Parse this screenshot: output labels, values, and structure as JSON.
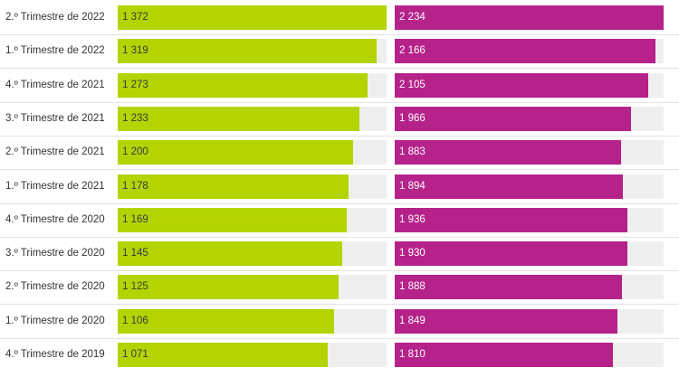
{
  "chart_data": {
    "type": "bar",
    "orientation": "horizontal",
    "categories": [
      "2.º Trimestre de 2022",
      "1.º Trimestre de 2022",
      "4.º Trimestre de 2021",
      "3.º Trimestre de 2021",
      "2.º Trimestre de 2021",
      "1.º Trimestre de 2021",
      "4.º Trimestre de 2020",
      "3.º Trimestre de 2020",
      "2.º Trimestre de 2020",
      "1.º Trimestre de 2020",
      "4.º Trimestre de 2019"
    ],
    "series": [
      {
        "values": [
          1372,
          1319,
          1273,
          1233,
          1200,
          1178,
          1169,
          1145,
          1125,
          1106,
          1071
        ],
        "labels": [
          "1 372",
          "1 319",
          "1 273",
          "1 233",
          "1 200",
          "1 178",
          "1 169",
          "1 145",
          "1 125",
          "1 106",
          "1 071"
        ],
        "color": "#b4d400",
        "label_color": "#3a3a3a"
      },
      {
        "values": [
          2234,
          2166,
          2105,
          1966,
          1883,
          1894,
          1936,
          1930,
          1888,
          1849,
          1810
        ],
        "labels": [
          "2 234",
          "2 166",
          "2 105",
          "1 966",
          "1 883",
          "1 894",
          "1 936",
          "1 930",
          "1 888",
          "1 849",
          "1 810"
        ],
        "color": "#b5228a",
        "label_color": "#ffffff"
      }
    ],
    "xlim": [
      [
        0,
        1372
      ],
      [
        0,
        2234
      ]
    ],
    "grid": false,
    "legend": "none"
  }
}
